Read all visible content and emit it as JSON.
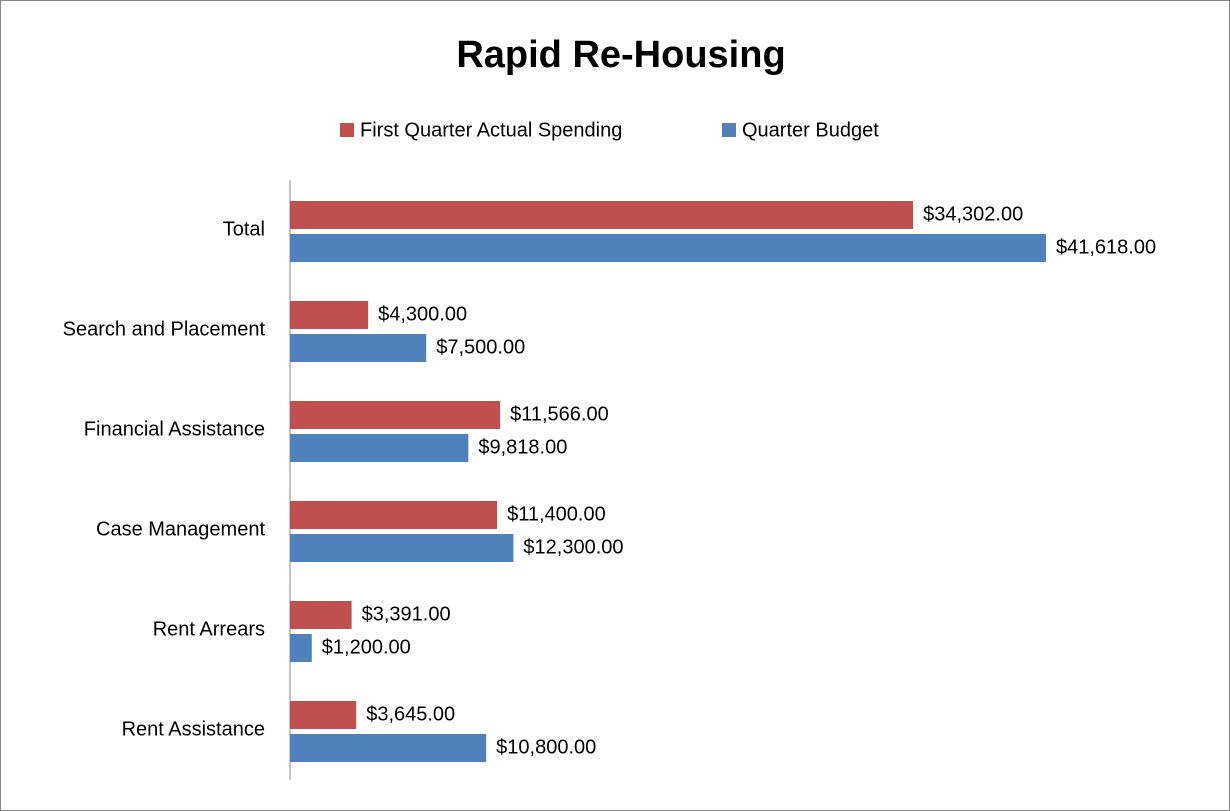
{
  "chart_data": {
    "type": "bar",
    "orientation": "horizontal",
    "title": "Rapid Re-Housing",
    "categories": [
      "Total",
      "Search and Placement",
      "Financial Assistance",
      "Case Management",
      "Rent Arrears",
      "Rent Assistance"
    ],
    "series": [
      {
        "name": "First Quarter Actual Spending",
        "color": "#c0504d",
        "values": [
          34302,
          4300,
          11566,
          11400,
          3391,
          3645
        ],
        "value_labels": [
          "$34,302.00",
          "$4,300.00",
          "$11,566.00",
          "$11,400.00",
          "$3,391.00",
          "$3,645.00"
        ]
      },
      {
        "name": "Quarter Budget",
        "color": "#4f81bd",
        "values": [
          41618,
          7500,
          9818,
          12300,
          1200,
          10800
        ],
        "value_labels": [
          "$41,618.00",
          "$7,500.00",
          "$9,818.00",
          "$12,300.00",
          "$1,200.00",
          "$10,800.00"
        ]
      }
    ],
    "legend": "top"
  }
}
